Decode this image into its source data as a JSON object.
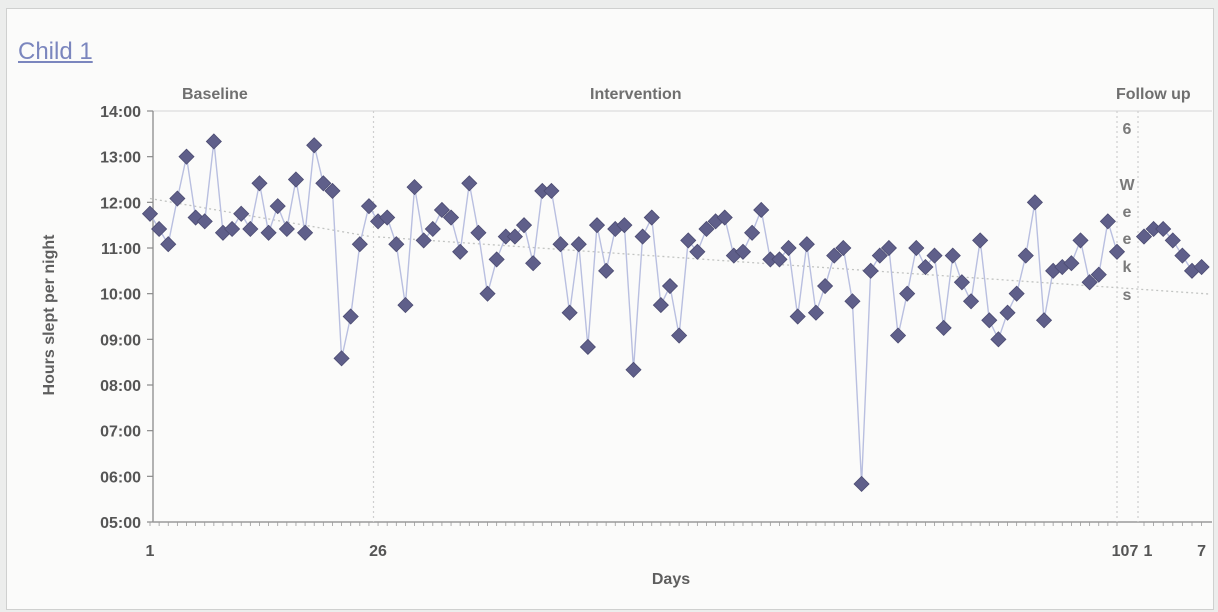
{
  "chart_data": {
    "type": "line",
    "title": "Child 1",
    "xlabel": "Days",
    "ylabel": "Hours slept per night",
    "ylim": [
      "05:00",
      "14:00"
    ],
    "y_ticks": [
      "14:00",
      "13:00",
      "12:00",
      "11:00",
      "10:00",
      "09:00",
      "08:00",
      "07:00",
      "06:00",
      "05:00"
    ],
    "x_ticks": [
      "1",
      "26",
      "107",
      "1",
      "7"
    ],
    "phases": [
      {
        "name": "Baseline",
        "start_day": 1,
        "end_day": 25
      },
      {
        "name": "Intervention",
        "start_day": 26,
        "end_day": 107
      },
      {
        "name": "Follow up",
        "start_day": 1,
        "end_day": 7
      }
    ],
    "phase_gap_label": [
      "6",
      "W",
      "e",
      "e",
      "k",
      "s"
    ],
    "series": [
      {
        "values": [
          "11:45",
          "11:25",
          "11:05",
          "12:05",
          "13:00",
          "11:40",
          "11:35",
          "13:20",
          "11:20",
          "11:25",
          "11:45",
          "11:25",
          "12:25",
          "11:20",
          "11:55",
          "11:25",
          "12:30",
          "11:20",
          "13:15",
          "12:25",
          "12:15",
          "08:35",
          "09:30",
          "11:05",
          "11:55",
          "11:35",
          "11:40",
          "11:05",
          "09:45",
          "12:20",
          "11:10",
          "11:25",
          "11:50",
          "11:40",
          "10:55",
          "12:25",
          "11:20",
          "10:00",
          "10:45",
          "11:15",
          "11:15",
          "11:30",
          "10:40",
          "12:15",
          "12:15",
          "11:05",
          "09:35",
          "11:05",
          "08:50",
          "11:30",
          "10:30",
          "11:25",
          "11:30",
          "08:20",
          "11:15",
          "11:40",
          "09:45",
          "10:10",
          "09:05",
          "11:10",
          "10:55",
          "11:25",
          "11:35",
          "11:40",
          "10:50",
          "10:55",
          "11:20",
          "11:50",
          "10:45",
          "10:45",
          "11:00",
          "09:30",
          "11:05",
          "09:35",
          "10:10",
          "10:50",
          "11:00",
          "09:50",
          "05:50",
          "10:30",
          "10:50",
          "11:00",
          "09:05",
          "10:00",
          "11:00",
          "10:35",
          "10:50",
          "09:15",
          "10:50",
          "10:15",
          "09:50",
          "11:10",
          "09:25",
          "09:00",
          "09:35",
          "10:00",
          "10:50",
          "12:00",
          "09:25",
          "10:30",
          "10:35",
          "10:40",
          "11:10",
          "10:15",
          "10:25",
          "11:35",
          "10:55"
        ],
        "follow_up": [
          "11:15",
          "11:25",
          "11:25",
          "11:10",
          "10:50",
          "10:30",
          "10:35"
        ]
      }
    ],
    "trend_lines": "dotted linear trends per phase",
    "legend": "none",
    "grid": false,
    "colors": {
      "marker": "#5f5f8a",
      "line": "#b9bfe0",
      "trend": "#c2c4c2",
      "phase_divider": "#cfcfcf",
      "title": "#7b86be"
    }
  }
}
